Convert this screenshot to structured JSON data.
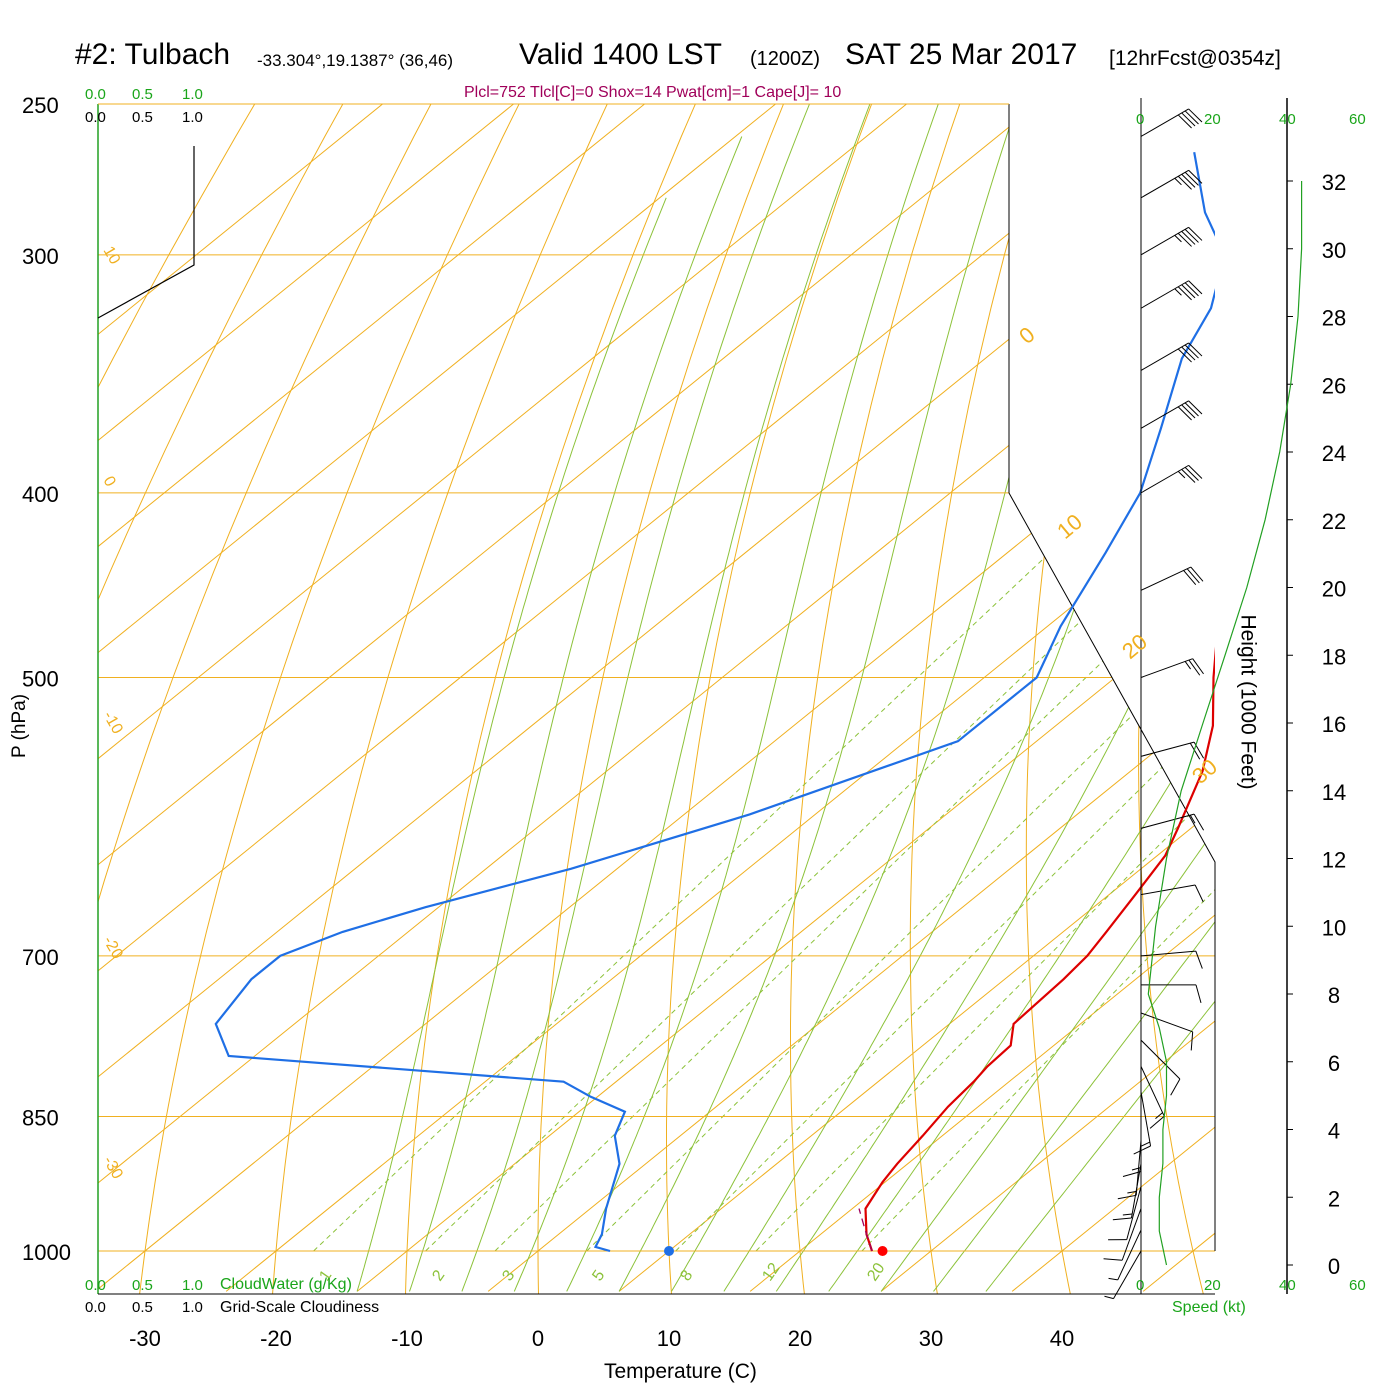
{
  "header": {
    "station": "#2: Tulbach",
    "coords": "-33.304°,19.1387° (36,46)",
    "valid": "Valid 1400 LST",
    "zulu": "(1200Z)",
    "date": "SAT 25 Mar 2017",
    "fcst": "[12hrFcst@0354z]",
    "indices": "Plcl=752 Tlcl[C]=0 Shox=14 Pwat[cm]=1 Cape[J]= 10"
  },
  "colors": {
    "temperature": "#dd0000",
    "dewpoint": "#1f6fe5",
    "isobars_isotherms": "#f0b020",
    "dry_adiabats": "#8cc23a",
    "mixing_ratio": "#8cc23a",
    "height": "#22a022",
    "axes_labels": "#000000"
  },
  "left_scale": {
    "green": [
      "0.0",
      "0.5",
      "1.0"
    ],
    "black": [
      "0.0",
      "0.5",
      "1.0"
    ],
    "cloudwater_label": "CloudWater (g/Kg)",
    "cloudiness_label": "Grid-Scale Cloudiness"
  },
  "right_axis": {
    "speed_ticks_top": [
      "0",
      "20",
      "40",
      "60"
    ],
    "speed_ticks_bottom": [
      "0",
      "20",
      "40",
      "60"
    ],
    "speed_label": "Speed (kt)",
    "height_label": "Height (1000 Feet)",
    "height_ticks": [
      "0",
      "2",
      "4",
      "6",
      "8",
      "10",
      "12",
      "14",
      "16",
      "18",
      "20",
      "22",
      "24",
      "26",
      "28",
      "30",
      "32"
    ]
  },
  "chart_data": {
    "type": "skew-t",
    "xlabel": "Temperature (C)",
    "ylabel": "P (hPa)",
    "pressure_log_scale": true,
    "x_ticks": [
      -30,
      -20,
      -10,
      0,
      10,
      20,
      30,
      40
    ],
    "y_ticks": [
      250,
      300,
      400,
      500,
      700,
      850,
      1000
    ],
    "xlim": [
      -30,
      50
    ],
    "ylim": [
      1000,
      250
    ],
    "temperature_profile": [
      {
        "p": 1000,
        "t": 25.5
      },
      {
        "p": 980,
        "t": 23.5
      },
      {
        "p": 950,
        "t": 21.0
      },
      {
        "p": 920,
        "t": 19.8
      },
      {
        "p": 900,
        "t": 19.2
      },
      {
        "p": 870,
        "t": 18.5
      },
      {
        "p": 840,
        "t": 17.7
      },
      {
        "p": 815,
        "t": 17.3
      },
      {
        "p": 800,
        "t": 16.9
      },
      {
        "p": 780,
        "t": 16.7
      },
      {
        "p": 760,
        "t": 14.9
      },
      {
        "p": 720,
        "t": 14.5
      },
      {
        "p": 700,
        "t": 14.1
      },
      {
        "p": 680,
        "t": 13.3
      },
      {
        "p": 650,
        "t": 12.0
      },
      {
        "p": 620,
        "t": 10.6
      },
      {
        "p": 600,
        "t": 9.0
      },
      {
        "p": 560,
        "t": 5.5
      },
      {
        "p": 530,
        "t": 2.0
      },
      {
        "p": 500,
        "t": -2.5
      },
      {
        "p": 470,
        "t": -7.0
      },
      {
        "p": 440,
        "t": -12.0
      },
      {
        "p": 400,
        "t": -19.0
      },
      {
        "p": 370,
        "t": -24.5
      },
      {
        "p": 340,
        "t": -31.0
      },
      {
        "p": 310,
        "t": -37.0
      },
      {
        "p": 290,
        "t": -41.5
      },
      {
        "p": 265,
        "t": -48.5
      }
    ],
    "dewpoint_profile": [
      {
        "p": 1000,
        "t": 5.5
      },
      {
        "p": 995,
        "t": 4.0
      },
      {
        "p": 980,
        "t": 3.3
      },
      {
        "p": 950,
        "t": 1.2
      },
      {
        "p": 900,
        "t": -2.0
      },
      {
        "p": 870,
        "t": -5.0
      },
      {
        "p": 845,
        "t": -6.5
      },
      {
        "p": 830,
        "t": -10.5
      },
      {
        "p": 815,
        "t": -14.0
      },
      {
        "p": 790,
        "t": -42.0
      },
      {
        "p": 760,
        "t": -46.0
      },
      {
        "p": 720,
        "t": -47.5
      },
      {
        "p": 700,
        "t": -47.5
      },
      {
        "p": 680,
        "t": -45.0
      },
      {
        "p": 660,
        "t": -41.0
      },
      {
        "p": 630,
        "t": -33.5
      },
      {
        "p": 590,
        "t": -25.0
      },
      {
        "p": 540,
        "t": -16.0
      },
      {
        "p": 500,
        "t": -16.0
      },
      {
        "p": 470,
        "t": -19.0
      },
      {
        "p": 430,
        "t": -22.5
      },
      {
        "p": 400,
        "t": -25.5
      },
      {
        "p": 370,
        "t": -30.0
      },
      {
        "p": 340,
        "t": -35.0
      },
      {
        "p": 320,
        "t": -37.5
      },
      {
        "p": 300,
        "t": -41.5
      },
      {
        "p": 285,
        "t": -47.0
      },
      {
        "p": 265,
        "t": -53.5
      }
    ],
    "parcel_profile": [
      {
        "p": 1000,
        "t": 25.5
      },
      {
        "p": 975,
        "t": 23.0
      },
      {
        "p": 950,
        "t": 20.5
      }
    ],
    "surface_temperature": 26.3,
    "surface_dewpoint": 10.0,
    "dry_adiabat_labels": [
      "10",
      "0",
      "-10",
      "-20",
      "-30"
    ],
    "moist_adiabat_labels": [
      "0",
      "10",
      "20",
      "30"
    ],
    "mixing_ratio_labels": [
      "1",
      "2",
      "3",
      "5",
      "8",
      "12",
      "20"
    ],
    "winds": [
      {
        "p": 1000,
        "dir": 150,
        "spd": 5
      },
      {
        "p": 975,
        "dir": 155,
        "spd": 7
      },
      {
        "p": 950,
        "dir": 160,
        "spd": 10
      },
      {
        "p": 925,
        "dir": 165,
        "spd": 12
      },
      {
        "p": 900,
        "dir": 170,
        "spd": 14
      },
      {
        "p": 875,
        "dir": 175,
        "spd": 15
      },
      {
        "p": 850,
        "dir": 180,
        "spd": 15
      },
      {
        "p": 825,
        "dir": 190,
        "spd": 15
      },
      {
        "p": 800,
        "dir": 205,
        "spd": 14
      },
      {
        "p": 775,
        "dir": 225,
        "spd": 12
      },
      {
        "p": 750,
        "dir": 250,
        "spd": 10
      },
      {
        "p": 725,
        "dir": 270,
        "spd": 10
      },
      {
        "p": 700,
        "dir": 275,
        "spd": 10
      },
      {
        "p": 650,
        "dir": 280,
        "spd": 10
      },
      {
        "p": 600,
        "dir": 285,
        "spd": 15
      },
      {
        "p": 550,
        "dir": 285,
        "spd": 20
      },
      {
        "p": 500,
        "dir": 290,
        "spd": 25
      },
      {
        "p": 450,
        "dir": 295,
        "spd": 30
      },
      {
        "p": 400,
        "dir": 300,
        "spd": 35
      },
      {
        "p": 370,
        "dir": 300,
        "spd": 40
      },
      {
        "p": 345,
        "dir": 300,
        "spd": 40
      },
      {
        "p": 320,
        "dir": 300,
        "spd": 45
      },
      {
        "p": 300,
        "dir": 300,
        "spd": 45
      },
      {
        "p": 280,
        "dir": 300,
        "spd": 45
      },
      {
        "p": 260,
        "dir": 300,
        "spd": 40
      }
    ],
    "wind_speed_profile_kt": [
      {
        "h": 0,
        "v": 7
      },
      {
        "h": 1,
        "v": 5
      },
      {
        "h": 2,
        "v": 5
      },
      {
        "h": 3,
        "v": 6
      },
      {
        "h": 4,
        "v": 6
      },
      {
        "h": 5,
        "v": 7
      },
      {
        "h": 6,
        "v": 7
      },
      {
        "h": 7,
        "v": 5
      },
      {
        "h": 8,
        "v": 2
      },
      {
        "h": 10,
        "v": 4
      },
      {
        "h": 12,
        "v": 7
      },
      {
        "h": 14,
        "v": 11
      },
      {
        "h": 16,
        "v": 17
      },
      {
        "h": 18,
        "v": 23
      },
      {
        "h": 20,
        "v": 29
      },
      {
        "h": 22,
        "v": 34
      },
      {
        "h": 24,
        "v": 38
      },
      {
        "h": 26,
        "v": 41
      },
      {
        "h": 28,
        "v": 43
      },
      {
        "h": 30,
        "v": 44
      },
      {
        "h": 32,
        "v": 44
      }
    ]
  }
}
